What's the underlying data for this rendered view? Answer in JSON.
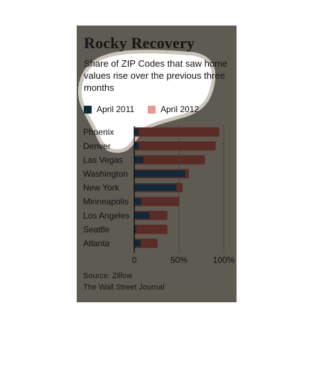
{
  "title": "Rocky Recovery",
  "subtitle": "Share of ZIP Codes that saw home values rise over the previous three months",
  "source": [
    "Source: Zillow",
    "The Wall Street Journal"
  ],
  "colors": {
    "panel_bg": "#5e5b52",
    "april_2011": "#0c2a3a",
    "april_2012": "#5b2b26",
    "april_2012_legend": "#e89b8a",
    "text": "#111111"
  },
  "chart_data": {
    "type": "bar",
    "orientation": "horizontal",
    "title": "Rocky Recovery",
    "subtitle": "Share of ZIP Codes that saw home values rise over the previous three months",
    "categories": [
      "Phoenix",
      "Denver",
      "Las Vegas",
      "Washington",
      "New York",
      "Minneapolis",
      "Los Angeles",
      "Seattle",
      "Atlanta"
    ],
    "series": [
      {
        "name": "April 2011",
        "values": [
          5,
          5,
          10,
          57,
          47,
          8,
          17,
          2,
          7
        ]
      },
      {
        "name": "April 2012",
        "values": [
          95,
          91,
          79,
          61,
          54,
          50,
          37,
          37,
          26
        ]
      }
    ],
    "xlim": [
      0,
      100
    ],
    "xticks": [
      "0",
      "50%",
      "100%"
    ],
    "xtick_values": [
      0,
      50,
      100
    ],
    "grid": "dotted vertical at 50% and 100%",
    "legend_position": "top"
  }
}
